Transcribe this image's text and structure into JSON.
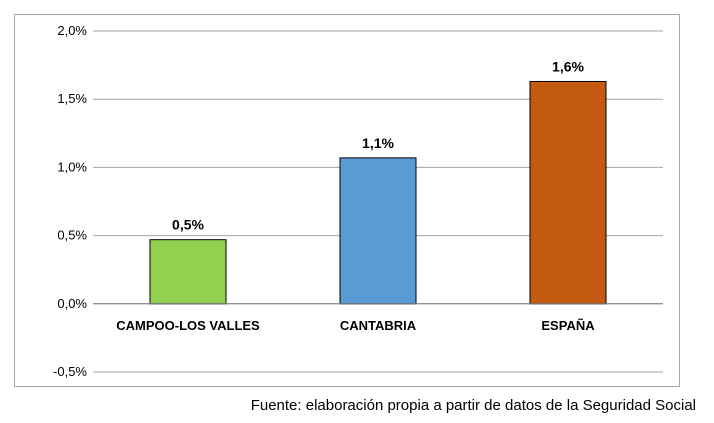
{
  "chart_data": {
    "type": "bar",
    "categories": [
      "CAMPOO-LOS VALLES",
      "CANTABRIA",
      "ESPAÑA"
    ],
    "values": [
      0.47,
      1.07,
      1.63
    ],
    "data_labels": [
      "0,5%",
      "1,1%",
      "1,6%"
    ],
    "colors": [
      "#92d050",
      "#5b9bd5",
      "#c55a11"
    ],
    "ylim": [
      -0.5,
      2.0
    ],
    "yticks": [
      -0.5,
      0.0,
      0.5,
      1.0,
      1.5,
      2.0
    ],
    "ytick_labels": [
      "-0,5%",
      "0,0%",
      "0,5%",
      "1,0%",
      "1,5%",
      "2,0%"
    ],
    "grid": true,
    "title": "",
    "xlabel": "",
    "ylabel": ""
  },
  "source_note": "Fuente: elaboración propia a partir de datos de la Seguridad Social"
}
